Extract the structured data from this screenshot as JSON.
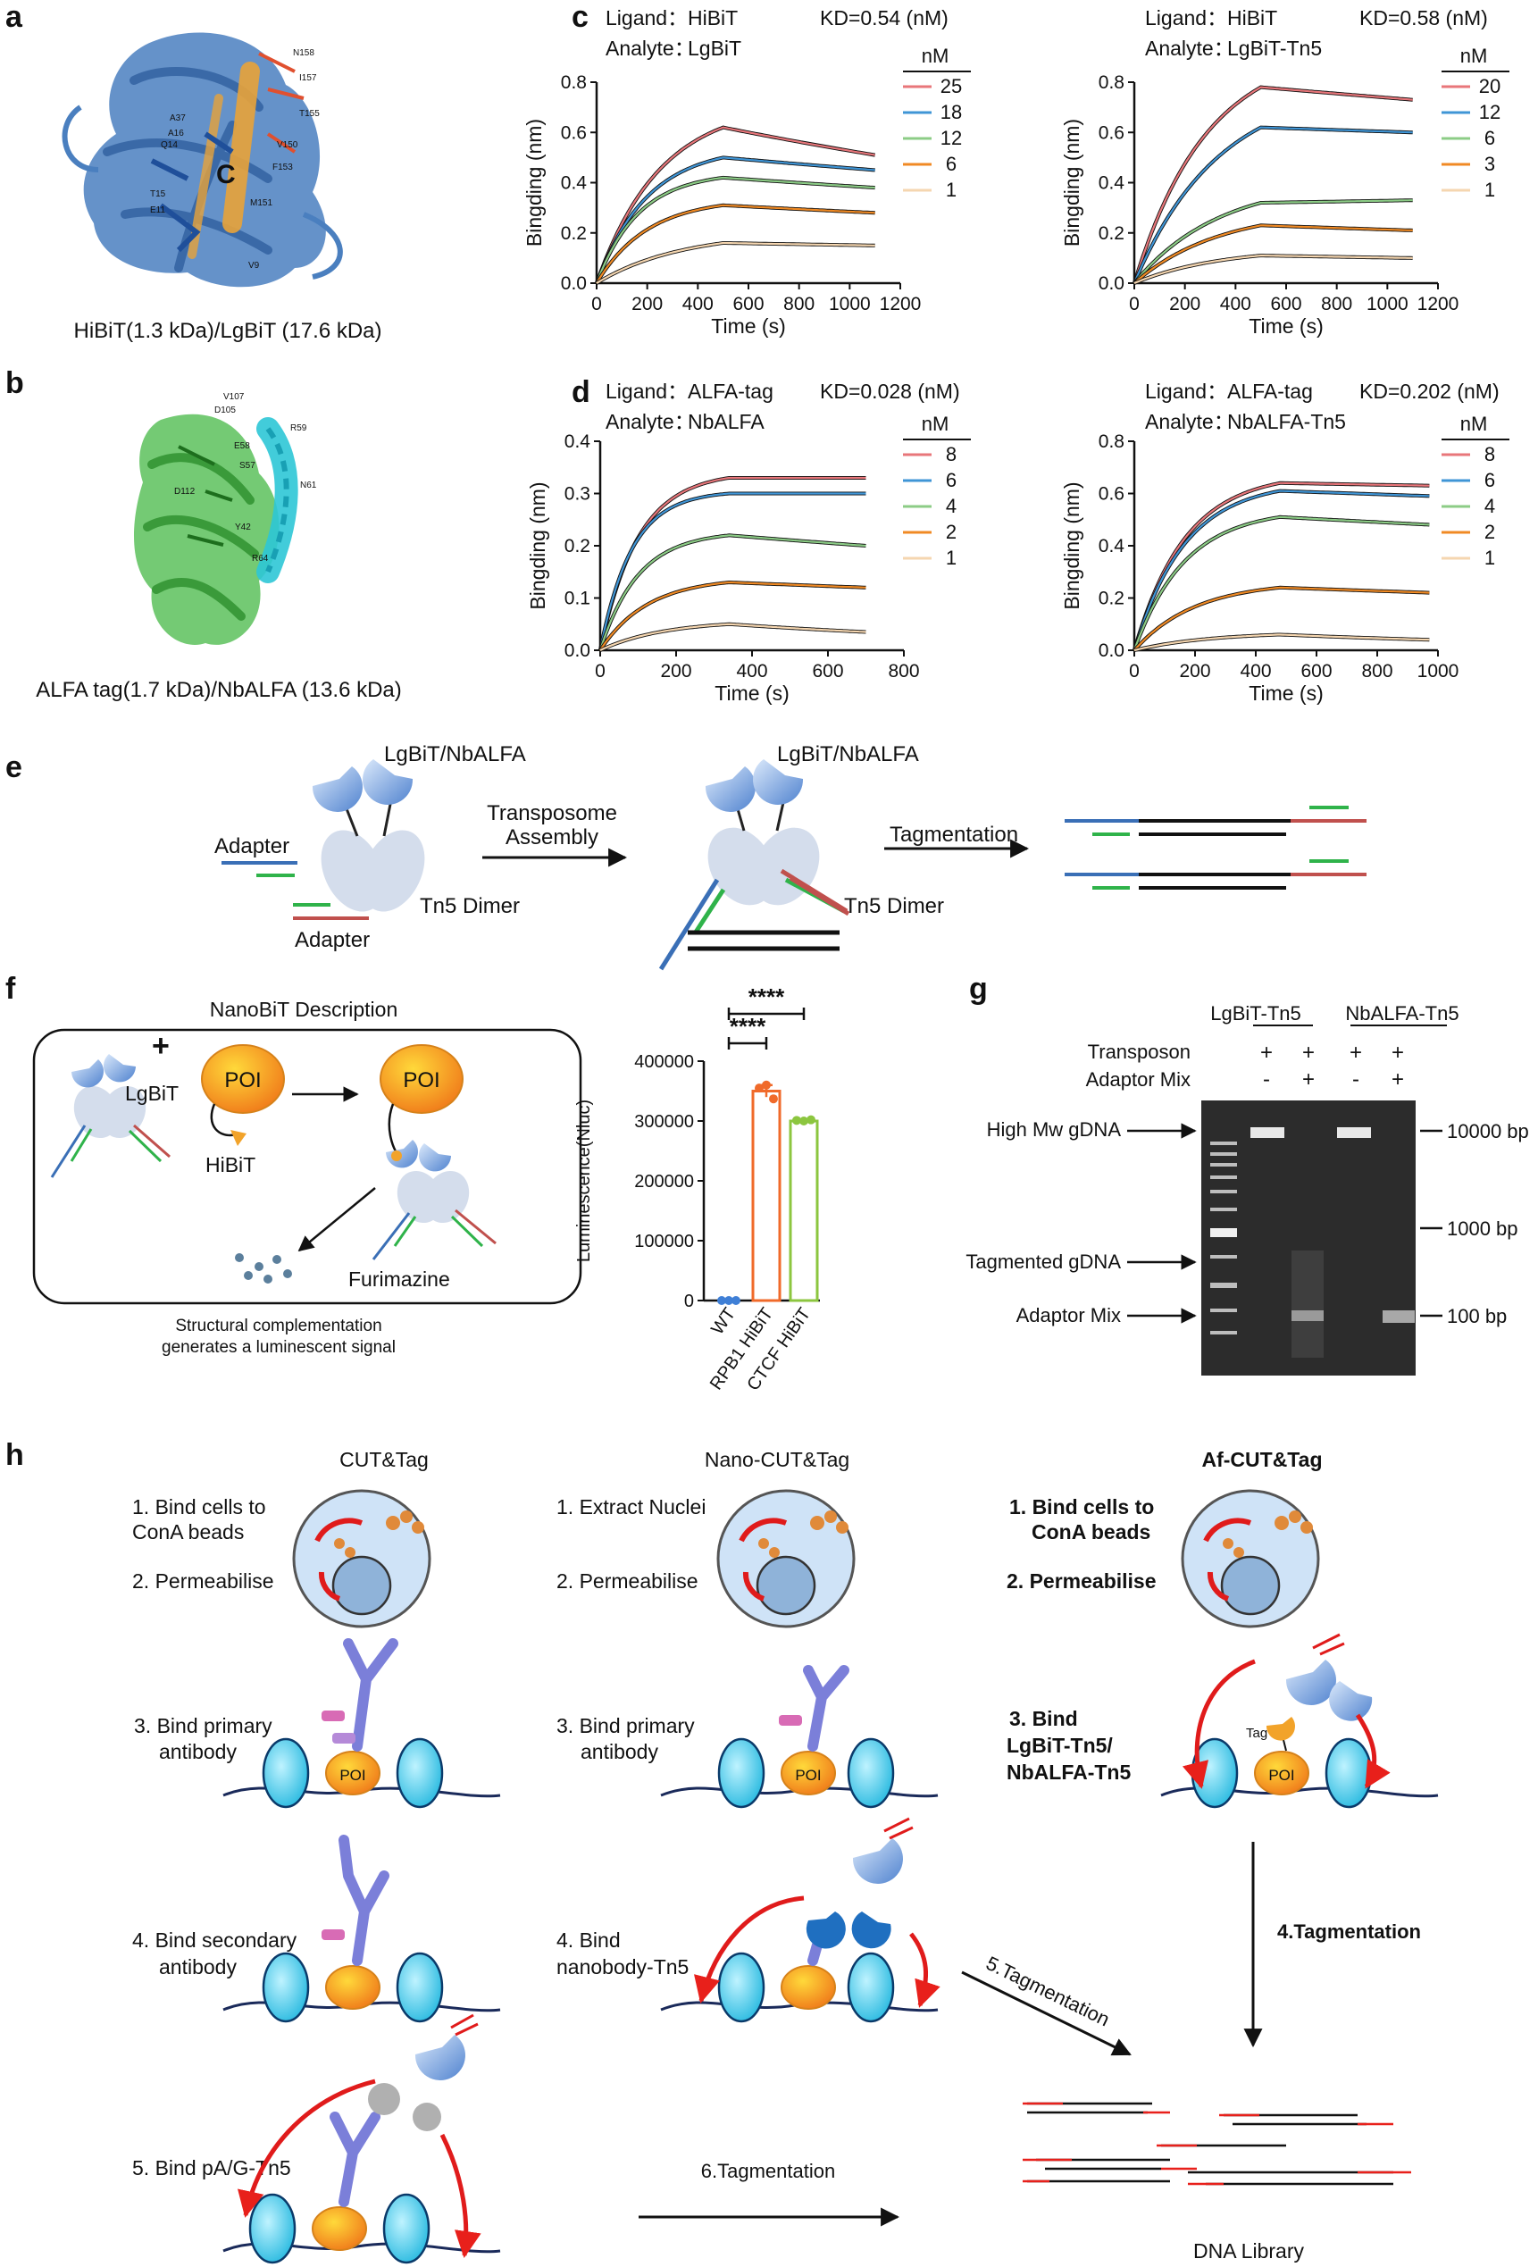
{
  "panel_labels": {
    "a": "a",
    "b": "b",
    "c": "c",
    "d": "d",
    "e": "e",
    "f": "f",
    "g": "g",
    "h": "h"
  },
  "colors": {
    "blue_chain": "#4a7fbf",
    "orange_peptide": "#e8a33a",
    "green_chain": "#5cc15c",
    "cyan_helix": "#2ec6d6",
    "adapter_blue": "#3a6fb6",
    "adapter_green": "#2fb34a",
    "adapter_red": "#c0504d",
    "red_fragment": "#e8201b"
  },
  "panel_a": {
    "caption": "HiBiT(1.3 kDa)/LgBiT (17.6 kDa)",
    "residues": [
      "N158",
      "I157",
      "A37",
      "T155",
      "Q14",
      "A16",
      "V150",
      "F153",
      "T15",
      "E11",
      "M151",
      "V9"
    ]
  },
  "panel_b": {
    "caption": "ALFA tag(1.7 kDa)/NbALFA (13.6 kDa)",
    "residues": [
      "V107",
      "D105",
      "R59",
      "E58",
      "S57",
      "N61",
      "D112",
      "Y42",
      "R64"
    ]
  },
  "panel_e": {
    "labels": {
      "top": "LgBiT/NbALFA",
      "top2": "LgBiT/NbALFA",
      "adapter1": "Adapter",
      "adapter2": "Adapter",
      "dimer1": "Tn5 Dimer",
      "dimer2": "Tn5 Dimer",
      "arrow1_l1": "Transposome",
      "arrow1_l2": "Assembly",
      "arrow2": "Tagmentation"
    }
  },
  "panel_f": {
    "title": "NanoBiT Description",
    "lgbit": "LgBiT",
    "poi": "POI",
    "poi2": "POI",
    "hibit": "HiBiT",
    "substrate": "Furimazine",
    "caption_l1": "Structural complementation",
    "caption_l2": "generates a luminescent signal",
    "plus": "+"
  },
  "panel_g": {
    "col1": "LgBiT-Tn5",
    "col2": "NbALFA-Tn5",
    "row1": "Transposon",
    "row2": "Adaptor  Mix",
    "row1_vals": [
      "+",
      "+",
      "+",
      "+"
    ],
    "row2_vals": [
      "-",
      "+",
      "-",
      "+"
    ],
    "left_labels": [
      "High Mw gDNA",
      "Tagmented gDNA",
      "Adaptor  Mix"
    ],
    "right_labels": [
      "10000 bp",
      "1000 bp",
      "100 bp"
    ]
  },
  "panel_h": {
    "col1_title": "CUT&Tag",
    "col2_title": "Nano-CUT&Tag",
    "col3_title": "Af-CUT&Tag",
    "c1_s1a": "1. Bind cells to",
    "c1_s1b": "ConA beads",
    "c1_s2": "2. Permeabilise",
    "c1_s3a": "3. Bind primary",
    "c1_s3b": "antibody",
    "c1_s4a": "4. Bind secondary",
    "c1_s4b": "antibody",
    "c1_s5": "5. Bind pA/G-Tn5",
    "c2_s1": "1. Extract Nuclei",
    "c2_s2": "2. Permeabilise",
    "c2_s3a": "3. Bind primary",
    "c2_s3b": "antibody",
    "c2_s4a": "4. Bind",
    "c2_s4b": "nanobody-Tn5",
    "c3_s1a": "1. Bind cells to",
    "c3_s1b": "ConA beads",
    "c3_s2": "2. Permeabilise",
    "c3_s3a": "3. Bind",
    "c3_s3b": "LgBiT-Tn5/",
    "c3_s3c": "NbALFA-Tn5",
    "tag": "Tag",
    "poi": "POI",
    "arrow_c2": "5.Tagmentation",
    "arrow_c1": "6.Tagmentation",
    "arrow_c3": "4.Tagmentation",
    "library": "DNA Library"
  },
  "chart_data": [
    {
      "id": "c-left",
      "type": "line",
      "header": {
        "ligand_label": "Ligand：",
        "ligand": "HiBiT",
        "analyte_label": "Analyte：",
        "analyte": "LgBiT",
        "kd": "KD=0.54 (nM)"
      },
      "xlabel": "Time (s)",
      "ylabel": "Bingding (nm)",
      "xlim": [
        0,
        1200
      ],
      "ylim": [
        0,
        0.8
      ],
      "xticks": [
        "0",
        "200",
        "400",
        "600",
        "800",
        "1000",
        "1200"
      ],
      "yticks": [
        "0.0",
        "0.2",
        "0.4",
        "0.6",
        "0.8"
      ],
      "legend_title": "nM",
      "assoc_end": 500,
      "end": 1100,
      "series": [
        {
          "name": "25",
          "color": "#e8767a",
          "peak": 0.62,
          "end": 0.51,
          "k": 0.004
        },
        {
          "name": "18",
          "color": "#3f95d6",
          "peak": 0.5,
          "end": 0.45,
          "k": 0.005
        },
        {
          "name": "12",
          "color": "#8ccc86",
          "peak": 0.42,
          "end": 0.38,
          "k": 0.006
        },
        {
          "name": "6",
          "color": "#f08a24",
          "peak": 0.31,
          "end": 0.28,
          "k": 0.005
        },
        {
          "name": "1",
          "color": "#f5d6b0",
          "peak": 0.16,
          "end": 0.15,
          "k": 0.003
        }
      ]
    },
    {
      "id": "c-right",
      "type": "line",
      "header": {
        "ligand_label": "Ligand：",
        "ligand": "HiBiT",
        "analyte_label": "Analyte：",
        "analyte": "LgBiT-Tn5",
        "kd": "KD=0.58 (nM)"
      },
      "xlabel": "Time (s)",
      "ylabel": "Bingding (nm)",
      "xlim": [
        0,
        1200
      ],
      "ylim": [
        0,
        0.8
      ],
      "xticks": [
        "0",
        "200",
        "400",
        "600",
        "800",
        "1000",
        "1200"
      ],
      "yticks": [
        "0.0",
        "0.2",
        "0.4",
        "0.6",
        "0.8"
      ],
      "legend_title": "nM",
      "assoc_end": 500,
      "end": 1100,
      "series": [
        {
          "name": "20",
          "color": "#e8767a",
          "peak": 0.78,
          "end": 0.73,
          "k": 0.0035
        },
        {
          "name": "12",
          "color": "#3f95d6",
          "peak": 0.62,
          "end": 0.6,
          "k": 0.003
        },
        {
          "name": "6",
          "color": "#8ccc86",
          "peak": 0.32,
          "end": 0.33,
          "k": 0.003
        },
        {
          "name": "3",
          "color": "#f08a24",
          "peak": 0.23,
          "end": 0.21,
          "k": 0.003
        },
        {
          "name": "1",
          "color": "#f5d6b0",
          "peak": 0.11,
          "end": 0.1,
          "k": 0.003
        }
      ]
    },
    {
      "id": "d-left",
      "type": "line",
      "header": {
        "ligand_label": "Ligand：",
        "ligand": "ALFA-tag",
        "analyte_label": "Analyte：",
        "analyte": "NbALFA",
        "kd": "KD=0.028 (nM)"
      },
      "xlabel": "Time (s)",
      "ylabel": "Bingding (nm)",
      "xlim": [
        0,
        800
      ],
      "ylim": [
        0,
        0.4
      ],
      "xticks": [
        "0",
        "200",
        "400",
        "600",
        "800"
      ],
      "yticks": [
        "0.0",
        "0.1",
        "0.2",
        "0.3",
        "0.4"
      ],
      "legend_title": "nM",
      "assoc_end": 340,
      "end": 700,
      "series": [
        {
          "name": "8",
          "color": "#e8767a",
          "peak": 0.33,
          "end": 0.33,
          "k": 0.01
        },
        {
          "name": "6",
          "color": "#3f95d6",
          "peak": 0.3,
          "end": 0.3,
          "k": 0.012
        },
        {
          "name": "4",
          "color": "#8ccc86",
          "peak": 0.22,
          "end": 0.2,
          "k": 0.01
        },
        {
          "name": "2",
          "color": "#f08a24",
          "peak": 0.13,
          "end": 0.12,
          "k": 0.008
        },
        {
          "name": "1",
          "color": "#f5d6b0",
          "peak": 0.05,
          "end": 0.035,
          "k": 0.006
        }
      ]
    },
    {
      "id": "d-right",
      "type": "line",
      "header": {
        "ligand_label": "Ligand：",
        "ligand": "ALFA-tag",
        "analyte_label": "Analyte：",
        "analyte": "NbALFA-Tn5",
        "kd": "KD=0.202 (nM)"
      },
      "xlabel": "Time (s)",
      "ylabel": "Bingding (nm)",
      "xlim": [
        0,
        1000
      ],
      "ylim": [
        0,
        0.8
      ],
      "xticks": [
        "0",
        "200",
        "400",
        "600",
        "800",
        "1000"
      ],
      "yticks": [
        "0.0",
        "0.2",
        "0.4",
        "0.6",
        "0.8"
      ],
      "legend_title": "nM",
      "assoc_end": 480,
      "end": 980,
      "series": [
        {
          "name": "8",
          "color": "#e8767a",
          "peak": 0.64,
          "end": 0.63,
          "k": 0.006
        },
        {
          "name": "6",
          "color": "#3f95d6",
          "peak": 0.61,
          "end": 0.59,
          "k": 0.006
        },
        {
          "name": "4",
          "color": "#8ccc86",
          "peak": 0.51,
          "end": 0.48,
          "k": 0.006
        },
        {
          "name": "2",
          "color": "#f08a24",
          "peak": 0.24,
          "end": 0.22,
          "k": 0.005
        },
        {
          "name": "1",
          "color": "#f5d6b0",
          "peak": 0.06,
          "end": 0.04,
          "k": 0.004
        }
      ]
    },
    {
      "id": "f-bar",
      "type": "bar",
      "ylabel": "Luminescence(Nluc)",
      "categories": [
        "WT",
        "RPB1 HiBiT",
        "CTCF HiBiT"
      ],
      "values": [
        0,
        350000,
        300000
      ],
      "points": [
        [
          0,
          0,
          0
        ],
        [
          355000,
          360000,
          337000
        ],
        [
          301000,
          300000,
          302000
        ]
      ],
      "errors": [
        0,
        10000,
        1500
      ],
      "colors": [
        "#3f7fd6",
        "#f06a2a",
        "#8cc63f"
      ],
      "ylim": [
        0,
        400000
      ],
      "yticks": [
        "0",
        "100000",
        "200000",
        "300000",
        "400000"
      ],
      "significance": [
        "****",
        "****"
      ]
    }
  ]
}
